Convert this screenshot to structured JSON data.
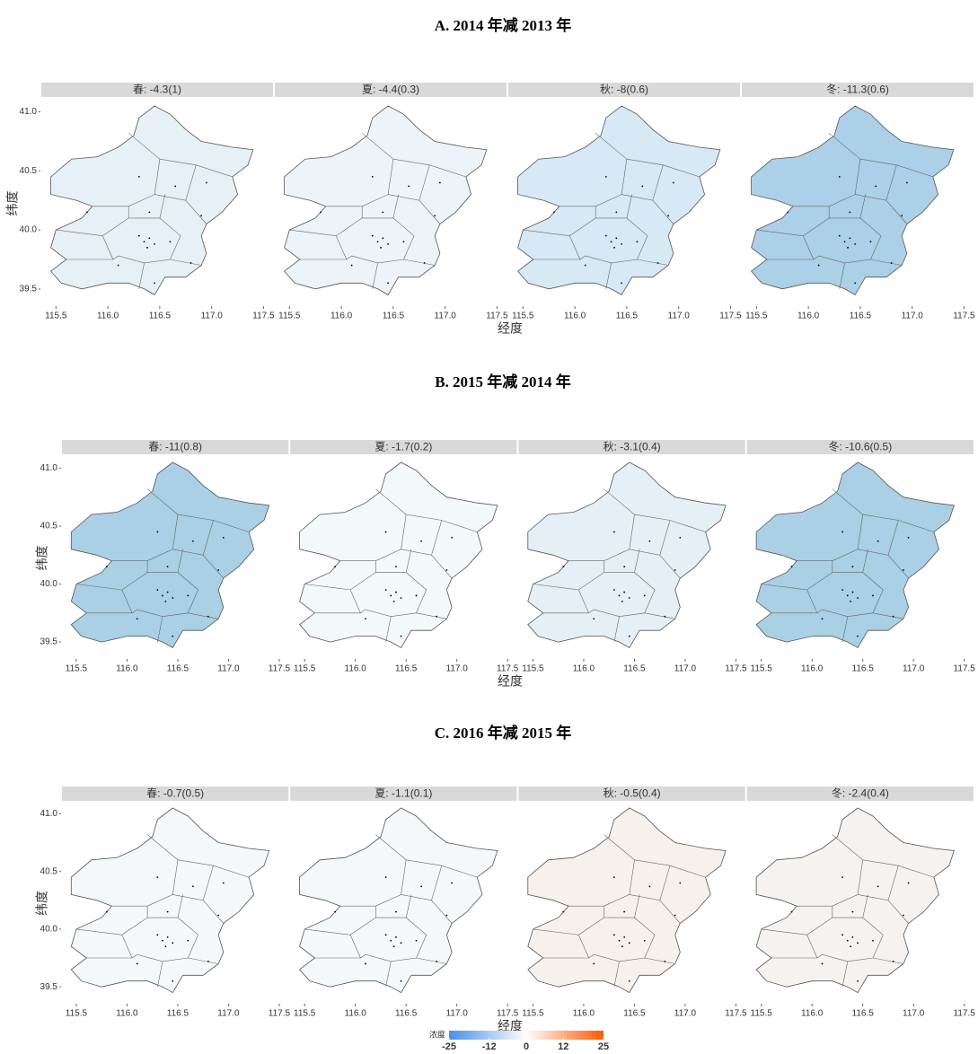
{
  "chart_data": [
    {
      "type": "map",
      "title": "A. 2014 年减 2013 年",
      "xlabel": "经度",
      "ylabel": "纬度",
      "xlim": [
        115.35,
        117.6
      ],
      "ylim": [
        39.4,
        41.05
      ],
      "xticks": [
        115.5,
        {
          "value": 116,
          "label": "116.0"
        },
        116.5,
        {
          "value": 117,
          "label": "117.0"
        },
        117.5
      ],
      "yticks": [
        39.5,
        {
          "value": 40,
          "label": "40.0"
        },
        40.5,
        {
          "value": 41,
          "label": "41.0"
        }
      ],
      "facets": [
        {
          "label": "春: -4.3(1)",
          "fill": "#e6f1f7"
        },
        {
          "label": "夏: -4.4(0.3)",
          "fill": "#ecf4f9"
        },
        {
          "label": "秋: -8(0.6)",
          "fill": "#d6e9f4"
        },
        {
          "label": "冬: -11.3(0.6)",
          "fill": "#abd0e7"
        }
      ]
    },
    {
      "type": "map",
      "title": "B. 2015 年减 2014 年",
      "xlabel": "经度",
      "ylabel": "纬度",
      "xlim": [
        115.35,
        117.6
      ],
      "ylim": [
        39.4,
        41.05
      ],
      "xticks": [
        115.5,
        {
          "value": 116,
          "label": "116.0"
        },
        116.5,
        {
          "value": 117,
          "label": "117.0"
        },
        117.5
      ],
      "yticks": [
        39.5,
        {
          "value": 40,
          "label": "40.0"
        },
        40.5,
        {
          "value": 41,
          "label": "41.0"
        }
      ],
      "facets": [
        {
          "label": "春: -11(0.8)",
          "fill": "#a9d0e4"
        },
        {
          "label": "夏: -1.7(0.2)",
          "fill": "#f3f8fa"
        },
        {
          "label": "秋: -3.1(0.4)",
          "fill": "#e5f0f6"
        },
        {
          "label": "冬: -10.6(0.5)",
          "fill": "#a9d0e4"
        }
      ]
    },
    {
      "type": "map",
      "title": "C. 2016 年减 2015 年",
      "xlabel": "经度",
      "ylabel": "纬度",
      "xlim": [
        115.35,
        117.6
      ],
      "ylim": [
        39.4,
        41.05
      ],
      "xticks": [
        115.5,
        {
          "value": 116,
          "label": "116.0"
        },
        116.5,
        {
          "value": 117,
          "label": "117.0"
        },
        117.5
      ],
      "yticks": [
        39.5,
        {
          "value": 40,
          "label": "40.0"
        },
        40.5,
        {
          "value": 41,
          "label": "41.0"
        }
      ],
      "facets": [
        {
          "label": "春: -0.7(0.5)",
          "fill": "#f4f8fa"
        },
        {
          "label": "夏: -1.1(0.1)",
          "fill": "#f4f8fa"
        },
        {
          "label": "秋: -0.5(0.4)",
          "fill": "#f7f1ed"
        },
        {
          "label": "冬: -2.4(0.4)",
          "fill": "#f6f2ef"
        }
      ]
    }
  ],
  "legend": {
    "title": "浓度",
    "range": [
      -25,
      25
    ],
    "ticks": [
      -25,
      -12,
      0,
      12,
      25
    ],
    "colors": [
      "#4a8fe6",
      "#ffffff",
      "#ff5a00"
    ]
  }
}
